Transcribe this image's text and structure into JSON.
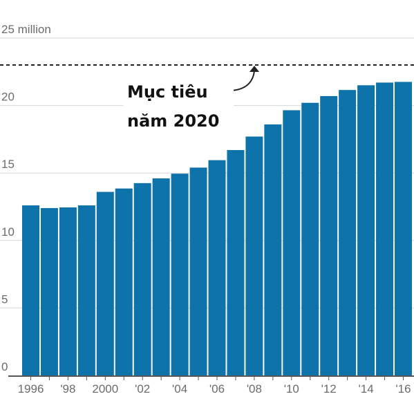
{
  "chart_data": {
    "type": "bar",
    "categories": [
      "1996",
      "1997",
      "1998",
      "1999",
      "2000",
      "2001",
      "2002",
      "2003",
      "2004",
      "2005",
      "2006",
      "2007",
      "2008",
      "2009",
      "2010",
      "2011",
      "2012",
      "2013",
      "2014",
      "2015",
      "2016"
    ],
    "values": [
      12.6,
      12.4,
      12.45,
      12.6,
      13.6,
      13.85,
      14.25,
      14.6,
      14.95,
      15.4,
      15.95,
      16.7,
      17.7,
      18.6,
      19.65,
      20.2,
      20.7,
      21.15,
      21.5,
      21.7,
      21.75
    ],
    "y_ticks": [
      {
        "value": 0,
        "label": "0"
      },
      {
        "value": 5,
        "label": "5"
      },
      {
        "value": 10,
        "label": "10"
      },
      {
        "value": 15,
        "label": "15"
      },
      {
        "value": 20,
        "label": "20"
      },
      {
        "value": 25,
        "label": "25 million"
      }
    ],
    "x_ticks": [
      {
        "value": "1996",
        "label": "1996"
      },
      {
        "value": "1998",
        "label": "'98"
      },
      {
        "value": "2000",
        "label": "2000"
      },
      {
        "value": "2002",
        "label": "'02"
      },
      {
        "value": "2004",
        "label": "'04"
      },
      {
        "value": "2006",
        "label": "'06"
      },
      {
        "value": "2008",
        "label": "'08"
      },
      {
        "value": "2010",
        "label": "'10"
      },
      {
        "value": "2012",
        "label": "'12"
      },
      {
        "value": "2014",
        "label": "'14"
      },
      {
        "value": "2016",
        "label": "'16"
      }
    ],
    "ylim": [
      0,
      25
    ],
    "target": {
      "value": 23,
      "label_lines": [
        "Mục tiêu",
        "năm 2020"
      ]
    },
    "grid": true,
    "colors": {
      "bar": "#0f73ab",
      "grid": "#d7d7d7",
      "axis": "#555555",
      "target_line": "#222222",
      "tick_text": "#6b6b6b"
    }
  }
}
